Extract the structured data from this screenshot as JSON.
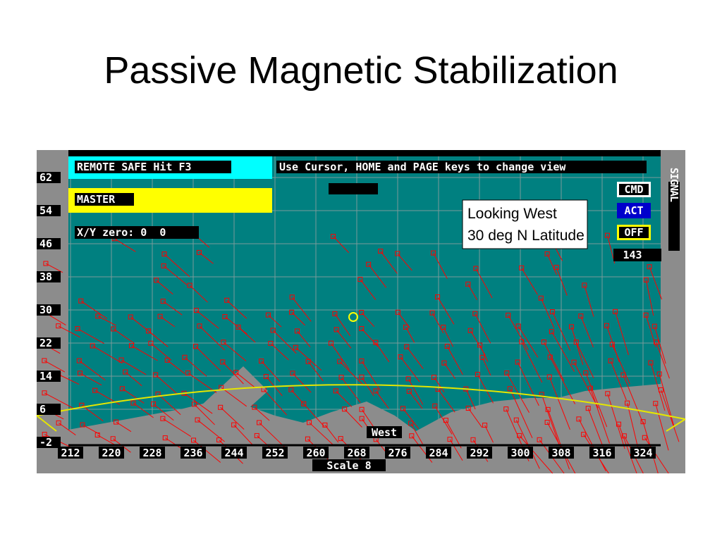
{
  "title": "Passive Magnetic Stabilization",
  "screen": {
    "status": "REMOTE SAFE Hit F3",
    "help": "Use Cursor, HOME and PAGE keys to change view",
    "mode": "MASTER",
    "zero": "X/Y zero: 0  0",
    "view": [
      "Looking West",
      "30 deg N Latitude"
    ],
    "buttons": [
      "CMD",
      "ACT",
      "OFF"
    ],
    "counter": "143",
    "signal": "SIGNAL",
    "direction": "West",
    "scale": "Scale 8",
    "y_labels": [
      "62",
      "54",
      "46",
      "38",
      "30",
      "22",
      "14",
      "6",
      "-2"
    ],
    "x_labels": [
      "212",
      "220",
      "228",
      "236",
      "244",
      "252",
      "260",
      "268",
      "276",
      "284",
      "292",
      "300",
      "308",
      "316",
      "324"
    ]
  }
}
